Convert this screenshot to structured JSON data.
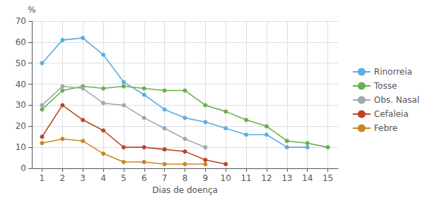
{
  "chart_data": {
    "type": "line",
    "xlabel": "Dias de doença",
    "ylabel": "%",
    "x": [
      1,
      2,
      3,
      4,
      5,
      6,
      7,
      8,
      9,
      10,
      11,
      12,
      13,
      14,
      15
    ],
    "xlim": [
      0.5,
      15.5
    ],
    "xticks": [
      1,
      2,
      3,
      4,
      5,
      6,
      7,
      8,
      9,
      10,
      11,
      12,
      13,
      14,
      15
    ],
    "ylim": [
      0,
      70
    ],
    "yticks": [
      0,
      10,
      20,
      30,
      40,
      50,
      60,
      70
    ],
    "grid": true,
    "legend": "right",
    "marker": "circle",
    "series": [
      {
        "name": "Rinorreia",
        "color": "#5baee0",
        "values": [
          50,
          61,
          62,
          54,
          41,
          35,
          28,
          24,
          22,
          19,
          16,
          16,
          10,
          10,
          null
        ]
      },
      {
        "name": "Tosse",
        "color": "#6ab04c",
        "values": [
          28,
          37,
          39,
          38,
          39,
          38,
          37,
          37,
          30,
          27,
          23,
          20,
          13,
          12,
          10
        ]
      },
      {
        "name": "Obs. Nasal",
        "color": "#a0a8b0",
        "values": [
          30,
          39,
          38,
          31,
          30,
          24,
          19,
          14,
          10,
          null,
          null,
          null,
          null,
          null,
          null
        ]
      },
      {
        "name": "Cefaleia",
        "color": "#c0432a",
        "values": [
          15,
          30,
          23,
          18,
          10,
          10,
          9,
          8,
          4,
          2,
          null,
          null,
          null,
          null,
          null
        ]
      },
      {
        "name": "Febre",
        "color": "#c88820",
        "values": [
          12,
          14,
          13,
          7,
          3,
          3,
          2,
          2,
          2,
          null,
          null,
          null,
          null,
          null,
          null
        ]
      }
    ]
  }
}
